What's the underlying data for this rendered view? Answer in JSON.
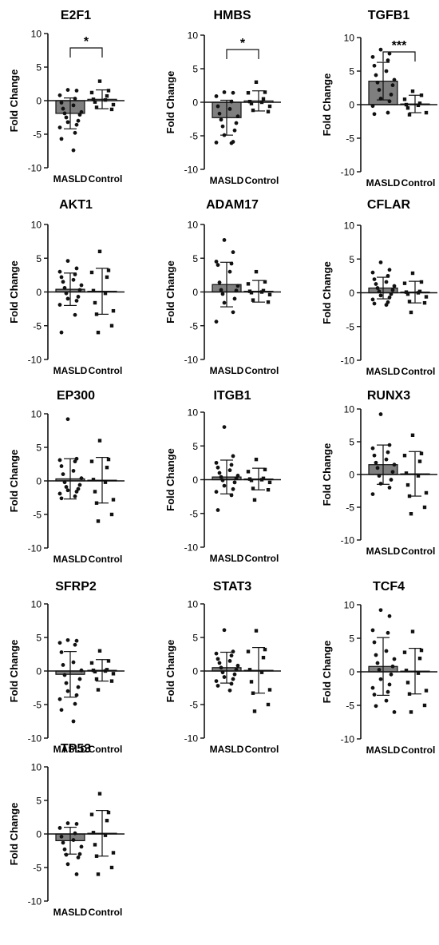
{
  "figure": {
    "ylabel": "Fold Change",
    "categories": [
      "MASLD",
      "Control"
    ],
    "yticks": [
      -10,
      -5,
      0,
      5,
      10
    ]
  },
  "chart_data": [
    {
      "type": "bar",
      "title": "E2F1",
      "categories": [
        "MASLD",
        "Control"
      ],
      "ylabel": "Fold Change",
      "ylim": [
        -10,
        10
      ],
      "series": [
        {
          "values": [
            -1.9,
            0.2
          ],
          "sd": [
            2.3,
            1.4
          ]
        }
      ],
      "points": [
        [
          1.6,
          1.5,
          0.8,
          0.3,
          -0.3,
          -0.7,
          -1.2,
          -1.7,
          -1.9,
          -2.1,
          -2.5,
          -3.0,
          -3.2,
          -3.6,
          -4.0,
          -4.8,
          -5.7,
          -7.4
        ],
        [
          2.9,
          1.5,
          1.2,
          0.7,
          0.2,
          0.1,
          -0.2,
          -0.6,
          -1.0,
          -1.3
        ]
      ],
      "significance": "*"
    },
    {
      "type": "bar",
      "title": "HMBS",
      "categories": [
        "MASLD",
        "Control"
      ],
      "ylabel": "Fold Change",
      "ylim": [
        -10,
        10
      ],
      "series": [
        {
          "values": [
            -2.3,
            0.2
          ],
          "sd": [
            2.6,
            1.5
          ]
        }
      ],
      "points": [
        [
          1.5,
          1.4,
          0.9,
          0.1,
          -0.6,
          -1.0,
          -1.7,
          -2.1,
          -2.6,
          -3.1,
          -3.6,
          -4.2,
          -4.9,
          -5.9,
          -6.0,
          -6.1
        ],
        [
          3.0,
          1.5,
          1.4,
          0.5,
          0.1,
          0.0,
          -0.2,
          -0.6,
          -1.2,
          -1.4
        ]
      ],
      "significance": "*"
    },
    {
      "type": "bar",
      "title": "TGFB1",
      "categories": [
        "MASLD",
        "Control"
      ],
      "ylabel": "Fold Change",
      "ylim": [
        -10,
        10
      ],
      "series": [
        {
          "values": [
            3.5,
            0.1
          ],
          "sd": [
            2.8,
            1.3
          ]
        }
      ],
      "points": [
        [
          8.2,
          7.6,
          7.1,
          6.6,
          5.8,
          5.0,
          4.4,
          3.7,
          3.3,
          2.9,
          2.2,
          1.5,
          0.9,
          0.5,
          -0.2,
          -1.2,
          -1.4
        ],
        [
          2.0,
          1.4,
          0.8,
          0.2,
          0.0,
          -0.1,
          -0.5,
          -1.2,
          -1.5
        ]
      ],
      "significance": "***"
    },
    {
      "type": "bar",
      "title": "AKT1",
      "categories": [
        "MASLD",
        "Control"
      ],
      "ylabel": "Fold Change",
      "ylim": [
        -10,
        10
      ],
      "series": [
        {
          "values": [
            0.4,
            0.1
          ],
          "sd": [
            2.4,
            3.4
          ]
        }
      ],
      "points": [
        [
          4.6,
          3.5,
          3.0,
          2.6,
          2.2,
          1.8,
          1.5,
          1.0,
          0.6,
          0.3,
          -0.2,
          -0.7,
          -1.0,
          -1.3,
          -1.9,
          -3.4,
          -6.0
        ],
        [
          6.0,
          3.2,
          2.9,
          2.2,
          0.2,
          -0.2,
          -1.6,
          -2.8,
          -3.3,
          -5.0,
          -6.0
        ]
      ]
    },
    {
      "type": "bar",
      "title": "ADAM17",
      "categories": [
        "MASLD",
        "Control"
      ],
      "ylabel": "Fold Change",
      "ylim": [
        -10,
        10
      ],
      "series": [
        {
          "values": [
            1.1,
            0.1
          ],
          "sd": [
            3.3,
            1.6
          ]
        }
      ],
      "points": [
        [
          7.7,
          5.9,
          4.5,
          4.2,
          4.0,
          3.0,
          1.4,
          0.9,
          0.3,
          0.2,
          -0.3,
          -1.0,
          -1.6,
          -3.0,
          -4.4
        ],
        [
          3.0,
          1.5,
          1.2,
          0.2,
          0.1,
          0.0,
          -0.1,
          -0.4,
          -1.2,
          -1.5
        ]
      ]
    },
    {
      "type": "bar",
      "title": "CFLAR",
      "categories": [
        "MASLD",
        "Control"
      ],
      "ylabel": "Fold Change",
      "ylim": [
        -10,
        10
      ],
      "series": [
        {
          "values": [
            0.7,
            0.1
          ],
          "sd": [
            1.6,
            1.6
          ]
        }
      ],
      "points": [
        [
          4.5,
          3.4,
          3.0,
          2.5,
          2.0,
          1.6,
          1.3,
          1.0,
          0.7,
          0.4,
          0.2,
          -0.2,
          -0.4,
          -0.7,
          -1.0,
          -1.4,
          -1.6,
          -1.8
        ],
        [
          2.9,
          1.6,
          1.4,
          0.2,
          0.1,
          0.0,
          -0.2,
          -0.6,
          -1.3,
          -1.5,
          -2.9
        ]
      ]
    },
    {
      "type": "bar",
      "title": "EP300",
      "categories": [
        "MASLD",
        "Control"
      ],
      "ylabel": "Fold Change",
      "ylim": [
        -10,
        10
      ],
      "series": [
        {
          "values": [
            0.3,
            0.1
          ],
          "sd": [
            3.0,
            3.4
          ]
        }
      ],
      "points": [
        [
          9.2,
          3.3,
          3.1,
          2.9,
          2.2,
          1.5,
          1.0,
          0.4,
          -0.2,
          -0.6,
          -0.9,
          -1.2,
          -1.4,
          -1.6,
          -1.9,
          -2.3,
          -2.6
        ],
        [
          6.0,
          3.2,
          2.9,
          2.0,
          0.2,
          -0.2,
          -1.6,
          -2.8,
          -3.3,
          -5.0,
          -6.0
        ]
      ]
    },
    {
      "type": "bar",
      "title": "ITGB1",
      "categories": [
        "MASLD",
        "Control"
      ],
      "ylabel": "Fold Change",
      "ylim": [
        -10,
        10
      ],
      "series": [
        {
          "values": [
            0.4,
            0.1
          ],
          "sd": [
            2.5,
            1.6
          ]
        }
      ],
      "points": [
        [
          7.8,
          3.5,
          2.5,
          2.2,
          1.8,
          1.4,
          1.0,
          0.6,
          0.4,
          0.2,
          -0.1,
          -0.4,
          -0.9,
          -1.4,
          -1.8,
          -2.3,
          -4.5
        ],
        [
          3.0,
          1.5,
          1.2,
          0.2,
          0.1,
          0.0,
          -0.1,
          -0.4,
          -1.3,
          -1.5,
          -3.0
        ]
      ]
    },
    {
      "type": "bar",
      "title": "RUNX3",
      "categories": [
        "MASLD",
        "Control"
      ],
      "ylabel": "Fold Change",
      "ylim": [
        -10,
        10
      ],
      "series": [
        {
          "values": [
            1.5,
            0.1
          ],
          "sd": [
            3.0,
            3.4
          ]
        }
      ],
      "points": [
        [
          9.2,
          4.5,
          4.0,
          3.4,
          2.9,
          2.3,
          1.8,
          1.5,
          1.0,
          0.4,
          -0.2,
          -0.8,
          -1.4,
          -2.0,
          -3.0
        ],
        [
          6.0,
          3.2,
          2.9,
          2.0,
          0.2,
          -0.2,
          -1.6,
          -2.8,
          -3.3,
          -5.0,
          -6.0
        ]
      ]
    },
    {
      "type": "bar",
      "title": "SFRP2",
      "categories": [
        "MASLD",
        "Control"
      ],
      "ylabel": "Fold Change",
      "ylim": [
        -10,
        10
      ],
      "series": [
        {
          "values": [
            -0.5,
            0.1
          ],
          "sd": [
            3.4,
            1.6
          ]
        }
      ],
      "points": [
        [
          4.6,
          4.5,
          4.2,
          3.9,
          2.8,
          1.3,
          0.9,
          0.1,
          -0.6,
          -1.2,
          -1.8,
          -2.4,
          -3.0,
          -3.6,
          -4.2,
          -4.9,
          -5.8,
          -7.5
        ],
        [
          3.0,
          1.5,
          1.2,
          0.2,
          0.1,
          0.0,
          -0.1,
          -0.4,
          -1.2,
          -1.5,
          -2.8
        ]
      ]
    },
    {
      "type": "bar",
      "title": "STAT3",
      "categories": [
        "MASLD",
        "Control"
      ],
      "ylabel": "Fold Change",
      "ylim": [
        -10,
        10
      ],
      "series": [
        {
          "values": [
            0.5,
            0.1
          ],
          "sd": [
            2.3,
            3.4
          ]
        }
      ],
      "points": [
        [
          6.1,
          2.9,
          2.6,
          2.3,
          1.8,
          1.5,
          1.2,
          0.8,
          0.5,
          0.2,
          -0.2,
          -0.5,
          -0.9,
          -1.2,
          -1.5,
          -1.9,
          -2.2,
          -2.9
        ],
        [
          6.0,
          3.2,
          2.9,
          2.0,
          0.2,
          -0.2,
          -1.6,
          -2.8,
          -3.3,
          -5.0,
          -6.0
        ]
      ]
    },
    {
      "type": "bar",
      "title": "TCF4",
      "categories": [
        "MASLD",
        "Control"
      ],
      "ylabel": "Fold Change",
      "ylim": [
        -10,
        10
      ],
      "series": [
        {
          "values": [
            0.8,
            0.1
          ],
          "sd": [
            4.3,
            3.4
          ]
        }
      ],
      "points": [
        [
          9.2,
          8.3,
          6.2,
          5.8,
          4.4,
          3.1,
          2.5,
          1.9,
          1.3,
          0.8,
          0.3,
          -0.4,
          -1.1,
          -1.9,
          -2.4,
          -3.0,
          -3.4,
          -4.3,
          -5.1,
          -6.0
        ],
        [
          6.0,
          3.2,
          2.9,
          2.0,
          0.2,
          -0.2,
          -1.6,
          -2.8,
          -3.3,
          -5.0,
          -6.0
        ]
      ]
    },
    {
      "type": "bar",
      "title": "TP53",
      "categories": [
        "MASLD",
        "Control"
      ],
      "ylabel": "Fold Change",
      "ylim": [
        -10,
        10
      ],
      "series": [
        {
          "values": [
            -1.0,
            0.1
          ],
          "sd": [
            2.0,
            3.4
          ]
        }
      ],
      "points": [
        [
          1.6,
          1.5,
          0.9,
          0.1,
          -0.4,
          -0.9,
          -1.3,
          -1.9,
          -2.3,
          -3.0,
          -3.1,
          -3.5,
          -4.5,
          -6.0
        ],
        [
          6.0,
          3.2,
          2.9,
          2.0,
          0.2,
          -0.2,
          -1.6,
          -2.8,
          -3.3,
          -5.0,
          -6.0
        ]
      ]
    }
  ]
}
